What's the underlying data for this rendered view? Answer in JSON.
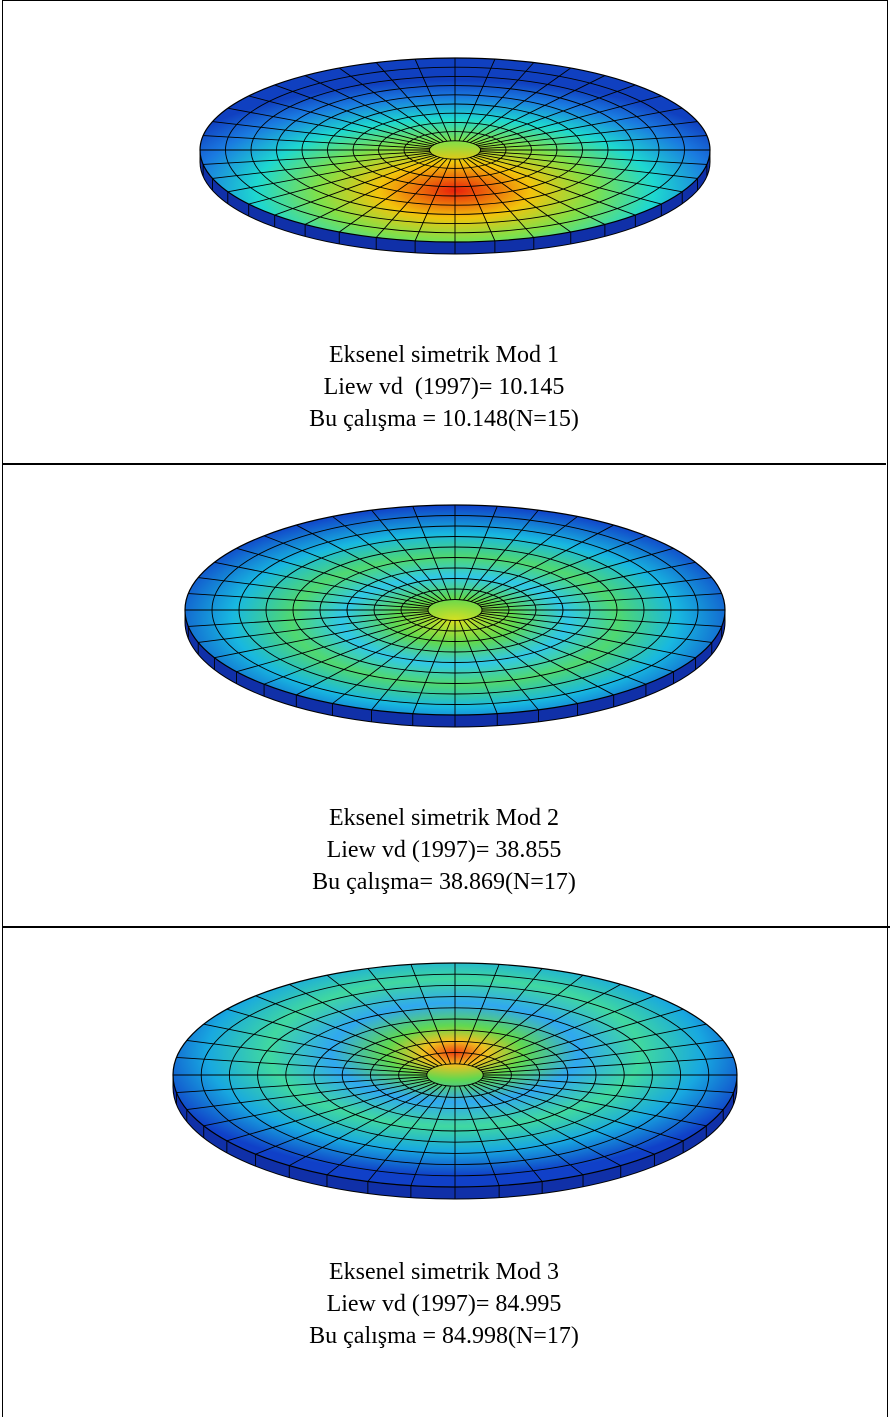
{
  "cells": [
    {
      "caption": [
        "Eksenel simetrik Mod 1",
        "Liew vd  (1997)= 10.145",
        "Bu çalışma = 10.148(N=15)"
      ]
    },
    {
      "caption": [
        "Eksenel simetrik Mod 2",
        "Liew vd (1997)= 38.855",
        "Bu çalışma= 38.869(N=17)"
      ]
    },
    {
      "caption": [
        "Eksenel simetrik Mod 3",
        "Liew vd (1997)= 84.995",
        "Bu çalışma = 84.998(N=17)"
      ]
    }
  ]
}
